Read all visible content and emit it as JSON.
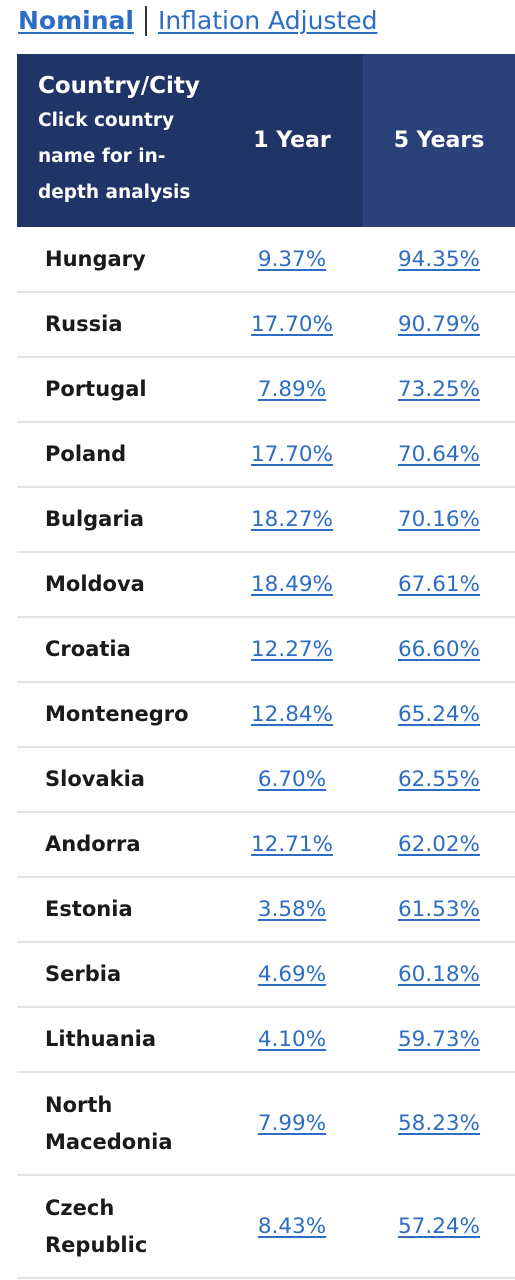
{
  "tabs": {
    "nominal": "Nominal",
    "inflation_adjusted": "Inflation Adjusted",
    "active": "nominal"
  },
  "table": {
    "headers": {
      "country_title": "Country/City",
      "country_note": "Click country name for in-depth analysis",
      "year1": "1 Year",
      "year5": "5 Years"
    },
    "rows": [
      {
        "country": "Hungary",
        "y1": "9.37%",
        "y5": "94.35%"
      },
      {
        "country": "Russia",
        "y1": "17.70%",
        "y5": "90.79%"
      },
      {
        "country": "Portugal",
        "y1": "7.89%",
        "y5": "73.25%"
      },
      {
        "country": "Poland",
        "y1": "17.70%",
        "y5": "70.64%"
      },
      {
        "country": "Bulgaria",
        "y1": "18.27%",
        "y5": "70.16%"
      },
      {
        "country": "Moldova",
        "y1": "18.49%",
        "y5": "67.61%"
      },
      {
        "country": "Croatia",
        "y1": "12.27%",
        "y5": "66.60%"
      },
      {
        "country": "Montenegro",
        "y1": "12.84%",
        "y5": "65.24%"
      },
      {
        "country": "Slovakia",
        "y1": "6.70%",
        "y5": "62.55%"
      },
      {
        "country": "Andorra",
        "y1": "12.71%",
        "y5": "62.02%"
      },
      {
        "country": "Estonia",
        "y1": "3.58%",
        "y5": "61.53%"
      },
      {
        "country": "Serbia",
        "y1": "4.69%",
        "y5": "60.18%"
      },
      {
        "country": "Lithuania",
        "y1": "4.10%",
        "y5": "59.73%"
      },
      {
        "country": "North Macedonia",
        "y1": "7.99%",
        "y5": "58.23%"
      },
      {
        "country": "Czech Republic",
        "y1": "8.43%",
        "y5": "57.24%"
      }
    ]
  },
  "colors": {
    "header_bg": "#213468",
    "header_bg_highlight": "#2a4179",
    "link": "#2d6dc4",
    "divider": "#e3e3e3"
  }
}
